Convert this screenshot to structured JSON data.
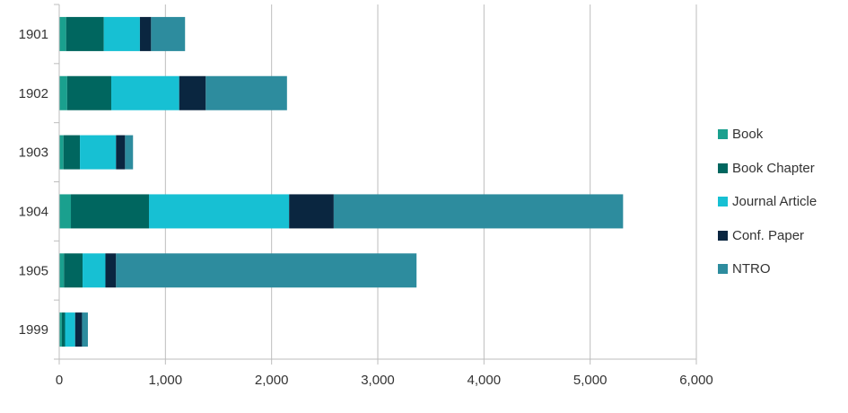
{
  "chart_data": {
    "type": "bar",
    "orientation": "horizontal",
    "stacked": true,
    "title": "",
    "xlabel": "",
    "ylabel": "",
    "categories": [
      "1901",
      "1902",
      "1903",
      "1904",
      "1905",
      "1999"
    ],
    "series": [
      {
        "name": "Book",
        "color": "#1aa08e",
        "values": [
          65,
          75,
          40,
          110,
          45,
          25
        ]
      },
      {
        "name": "Book Chapter",
        "color": "#00665f",
        "values": [
          355,
          415,
          155,
          735,
          175,
          30
        ]
      },
      {
        "name": "Journal Article",
        "color": "#17c0d3",
        "values": [
          340,
          640,
          340,
          1320,
          215,
          95
        ]
      },
      {
        "name": "Conf. Paper",
        "color": "#0a2640",
        "values": [
          105,
          250,
          85,
          420,
          100,
          65
        ]
      },
      {
        "name": "NTRO",
        "color": "#2d8c9e",
        "values": [
          320,
          765,
          75,
          2725,
          2830,
          55
        ]
      }
    ],
    "xlim": [
      0,
      6000
    ],
    "xticks": [
      0,
      1000,
      2000,
      3000,
      4000,
      5000,
      6000
    ],
    "xtick_labels": [
      "0",
      "1,000",
      "2,000",
      "3,000",
      "4,000",
      "5,000",
      "6,000"
    ],
    "grid": "vertical",
    "legend_position": "right"
  }
}
